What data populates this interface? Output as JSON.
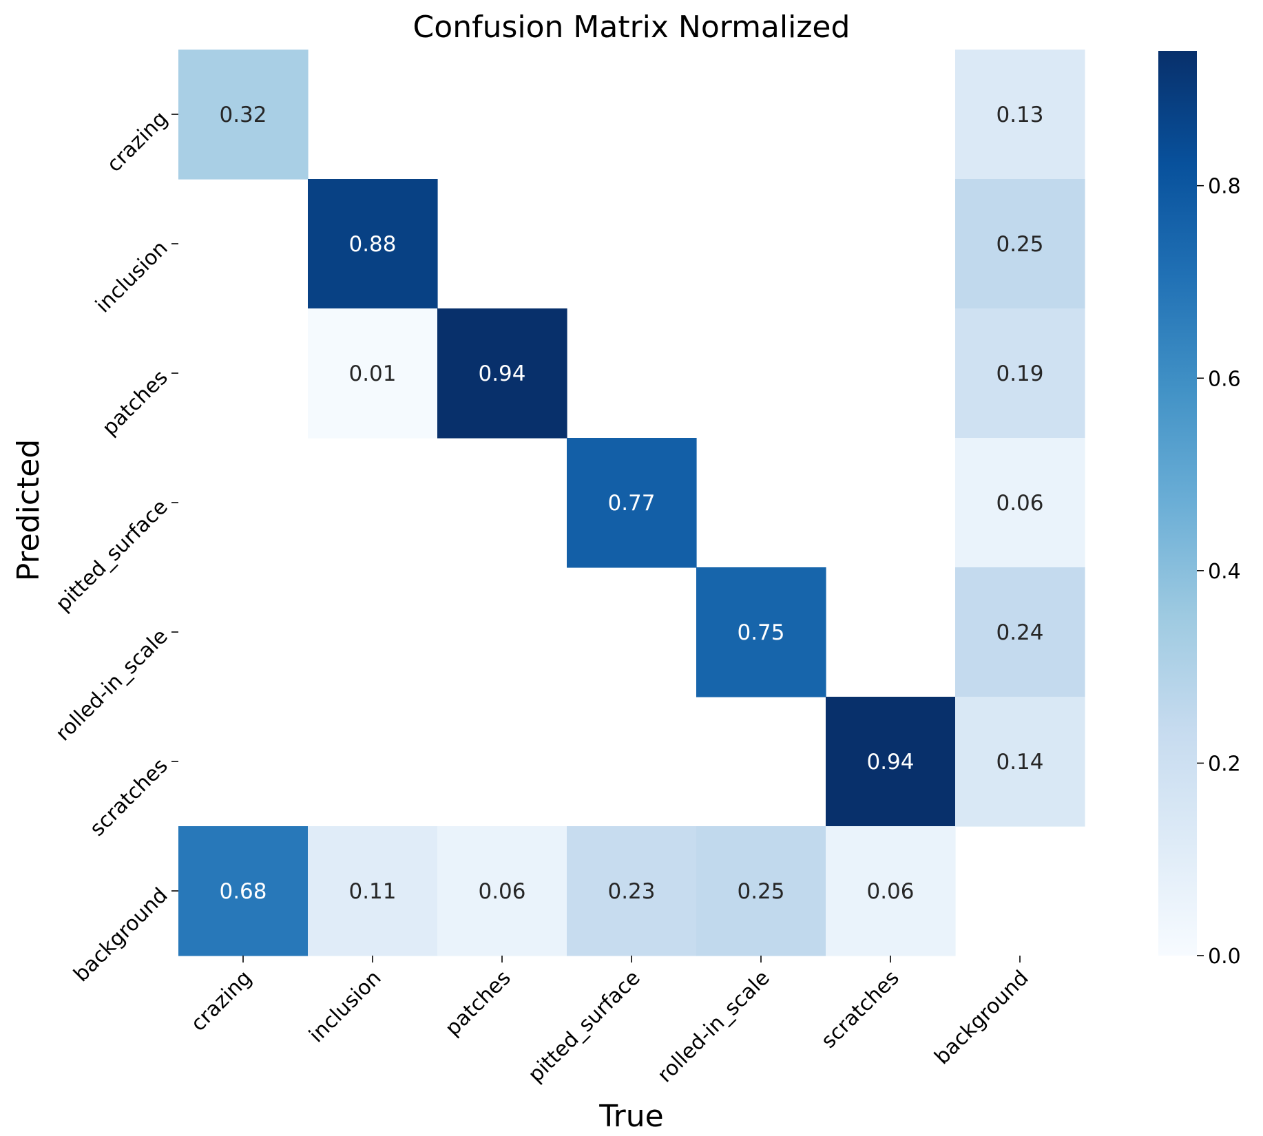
{
  "chart_data": {
    "type": "heatmap",
    "title": "Confusion Matrix Normalized",
    "xlabel": "True",
    "ylabel": "Predicted",
    "x_categories": [
      "crazing",
      "inclusion",
      "patches",
      "pitted_surface",
      "rolled-in_scale",
      "scratches",
      "background"
    ],
    "y_categories": [
      "crazing",
      "inclusion",
      "patches",
      "pitted_surface",
      "rolled-in_scale",
      "scratches",
      "background"
    ],
    "values": [
      [
        0.32,
        null,
        null,
        null,
        null,
        null,
        0.13
      ],
      [
        null,
        0.88,
        null,
        null,
        null,
        null,
        0.25
      ],
      [
        null,
        0.01,
        0.94,
        null,
        null,
        null,
        0.19
      ],
      [
        null,
        null,
        null,
        0.77,
        null,
        null,
        0.06
      ],
      [
        null,
        null,
        null,
        null,
        0.75,
        null,
        0.24
      ],
      [
        null,
        null,
        null,
        null,
        null,
        0.94,
        0.14
      ],
      [
        0.68,
        0.11,
        0.06,
        0.23,
        0.25,
        0.06,
        null
      ]
    ],
    "colormap": "Blues",
    "vmin": 0.0,
    "vmax": 0.94,
    "colorbar_ticks": [
      "0.0",
      "0.2",
      "0.4",
      "0.6",
      "0.8"
    ],
    "colorbar_tick_values": [
      0.0,
      0.2,
      0.4,
      0.6,
      0.8
    ]
  }
}
